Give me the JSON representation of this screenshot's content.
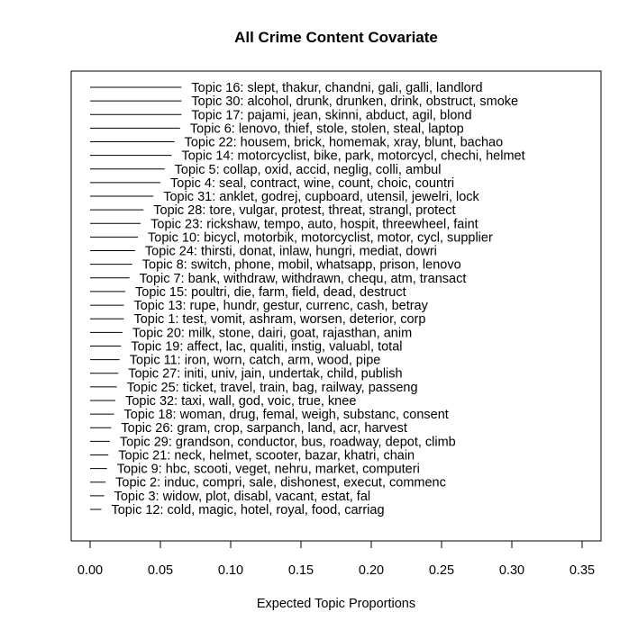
{
  "chart_data": {
    "type": "bar",
    "title": "All Crime Content Covariate",
    "xlabel": "Expected Topic Proportions",
    "ylabel": "",
    "xlim": [
      0,
      0.35
    ],
    "x_ticks": [
      "0.00",
      "0.05",
      "0.10",
      "0.15",
      "0.20",
      "0.25",
      "0.30",
      "0.35"
    ],
    "x_tick_values": [
      0,
      0.05,
      0.1,
      0.15,
      0.2,
      0.25,
      0.3,
      0.35
    ],
    "orientation": "horizontal",
    "grid": false,
    "legend": "none",
    "topics": [
      {
        "label": "Topic 16: slept, thakur, chandni, gali, galli, landlord",
        "value": 0.065
      },
      {
        "label": "Topic 30: alcohol, drunk, drunken, drink, obstruct, smoke",
        "value": 0.065
      },
      {
        "label": "Topic 17: pajami, jean, skinni, abduct, agil, blond",
        "value": 0.065
      },
      {
        "label": "Topic 6: lenovo, thief, stole, stolen, steal, laptop",
        "value": 0.064
      },
      {
        "label": "Topic 22: housem, brick, homemak, xray, blunt, bachao",
        "value": 0.06
      },
      {
        "label": "Topic 14: motorcyclist, bike, park, motorcycl, chechi, helmet",
        "value": 0.058
      },
      {
        "label": "Topic 5: collap, oxid, accid, neglig, colli, ambul",
        "value": 0.053
      },
      {
        "label": "Topic 4: seal, contract, wine, count, choic, countri",
        "value": 0.05
      },
      {
        "label": "Topic 31: anklet, godrej, cupboard, utensil, jewelri, lock",
        "value": 0.045
      },
      {
        "label": "Topic 28: tore, vulgar, protest, threat, strangl, protect",
        "value": 0.038
      },
      {
        "label": "Topic 23: rickshaw, tempo, auto, hospit, threewheel, faint",
        "value": 0.036
      },
      {
        "label": "Topic 10: bicycl, motorbik, motorcyclist, motor, cycl, supplier",
        "value": 0.034
      },
      {
        "label": "Topic 24: thirsti, donat, inlaw, hungri, mediat, dowri",
        "value": 0.032
      },
      {
        "label": "Topic 8: switch, phone, mobil, whatsapp, prison, lenovo",
        "value": 0.03
      },
      {
        "label": "Topic 7: bank, withdraw, withdrawn, chequ, atm, transact",
        "value": 0.028
      },
      {
        "label": "Topic 15: poultri, die, farm, field, dead, destruct",
        "value": 0.025
      },
      {
        "label": "Topic 13: rupe, hundr, gestur, currenc, cash, betray",
        "value": 0.024
      },
      {
        "label": "Topic 1: test, vomit, ashram, worsen, deterior, corp",
        "value": 0.024
      },
      {
        "label": "Topic 20: milk, stone, dairi, goat, rajasthan, anim",
        "value": 0.023
      },
      {
        "label": "Topic 19: affect, lac, qualiti, instig, valuabl, total",
        "value": 0.022
      },
      {
        "label": "Topic 11: iron, worn, catch, arm, wood, pipe",
        "value": 0.021
      },
      {
        "label": "Topic 27: initi, univ, jain, undertak, child, publish",
        "value": 0.02
      },
      {
        "label": "Topic 25: ticket, travel, train, bag, railway, passeng",
        "value": 0.019
      },
      {
        "label": "Topic 32: taxi, wall, god, voic, true, knee",
        "value": 0.018
      },
      {
        "label": "Topic 18: woman, drug, femal, weigh, substanc, consent",
        "value": 0.017
      },
      {
        "label": "Topic 26: gram, crop, sarpanch, land, acr, harvest",
        "value": 0.015
      },
      {
        "label": "Topic 29: grandson, conductor, bus, roadway, depot, climb",
        "value": 0.014
      },
      {
        "label": "Topic 21: neck, helmet, scooter, bazar, khatri, chain",
        "value": 0.013
      },
      {
        "label": "Topic 9: hbc, scooti, veget, nehru, market, computeri",
        "value": 0.012
      },
      {
        "label": "Topic 2: induc, compri, sale, dishonest, execut, commenc",
        "value": 0.011
      },
      {
        "label": "Topic 3: widow, plot, disabl, vacant, estat, fal",
        "value": 0.01
      },
      {
        "label": "Topic 12: cold, magic, hotel, royal, food, carriag",
        "value": 0.008
      }
    ]
  }
}
